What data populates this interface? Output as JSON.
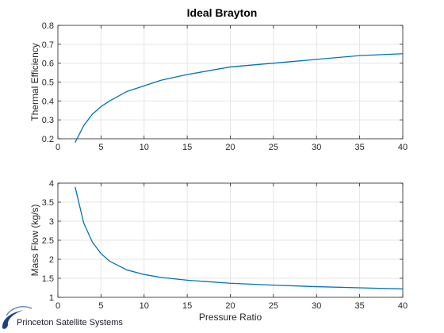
{
  "title": "Ideal Brayton",
  "logo": {
    "text": "Princeton Satellite Systems"
  },
  "colors": {
    "line": "#0072BD",
    "grid": "#e5e5e5",
    "axis": "#262626",
    "logo": "#1c3f8c"
  },
  "chart_data": [
    {
      "type": "line",
      "title": "Ideal Brayton",
      "xlabel": "",
      "ylabel": "Thermal Efficiency",
      "xlim": [
        0,
        40
      ],
      "ylim": [
        0.2,
        0.8
      ],
      "xticks": [
        "0",
        "5",
        "10",
        "15",
        "20",
        "25",
        "30",
        "35",
        "40"
      ],
      "yticks": [
        "0.2",
        "0.3",
        "0.4",
        "0.5",
        "0.6",
        "0.7",
        "0.8"
      ],
      "grid": true,
      "series": [
        {
          "x": [
            2,
            3,
            4,
            5,
            6,
            8,
            10,
            12,
            15,
            20,
            25,
            30,
            35,
            40
          ],
          "values": [
            0.18,
            0.27,
            0.33,
            0.37,
            0.4,
            0.45,
            0.48,
            0.51,
            0.54,
            0.58,
            0.6,
            0.62,
            0.64,
            0.65
          ]
        }
      ]
    },
    {
      "type": "line",
      "title": "",
      "xlabel": "Pressure Ratio",
      "ylabel": "Mass Flow (kg/s)",
      "xlim": [
        0,
        40
      ],
      "ylim": [
        1,
        4
      ],
      "xticks": [
        "0",
        "5",
        "10",
        "15",
        "20",
        "25",
        "30",
        "35",
        "40"
      ],
      "yticks": [
        "1",
        "1.5",
        "2",
        "2.5",
        "3",
        "3.5",
        "4"
      ],
      "grid": true,
      "series": [
        {
          "x": [
            2,
            3,
            4,
            5,
            6,
            8,
            10,
            12,
            15,
            20,
            25,
            30,
            35,
            40
          ],
          "values": [
            3.9,
            2.95,
            2.45,
            2.15,
            1.95,
            1.72,
            1.6,
            1.52,
            1.45,
            1.37,
            1.32,
            1.28,
            1.25,
            1.22
          ]
        }
      ]
    }
  ]
}
